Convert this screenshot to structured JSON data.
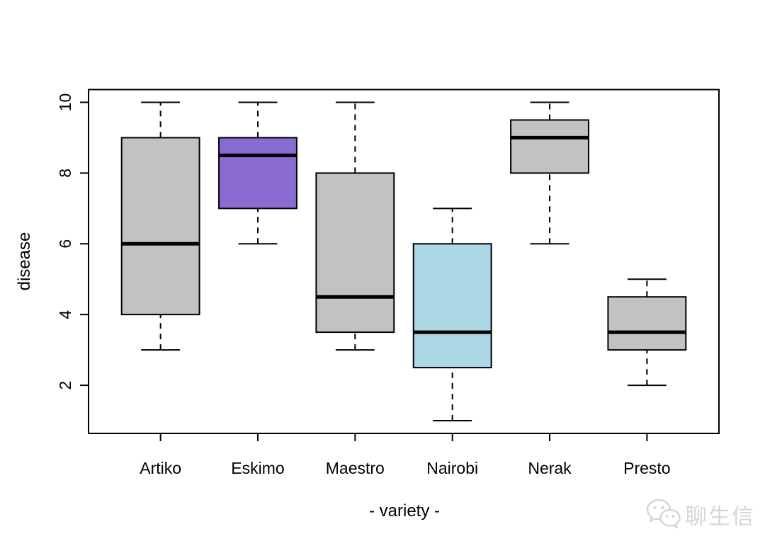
{
  "watermark": {
    "text": "聊生信",
    "icon": "wechat-icon",
    "color": "#d6d6d6"
  },
  "chart_data": {
    "type": "boxplot",
    "title": "",
    "xlabel": "- variety -",
    "ylabel": "disease",
    "categories": [
      "Artiko",
      "Eskimo",
      "Maestro",
      "Nairobi",
      "Nerak",
      "Presto"
    ],
    "series": [
      {
        "name": "Artiko",
        "min": 3,
        "q1": 4,
        "median": 6,
        "q3": 9,
        "max": 10,
        "color": "#C2C2C2"
      },
      {
        "name": "Eskimo",
        "min": 6,
        "q1": 7,
        "median": 8.5,
        "q3": 9,
        "max": 10,
        "color": "#8A6BD1"
      },
      {
        "name": "Maestro",
        "min": 3,
        "q1": 3.5,
        "median": 4.5,
        "q3": 8,
        "max": 10,
        "color": "#C2C2C2"
      },
      {
        "name": "Nairobi",
        "min": 1,
        "q1": 2.5,
        "median": 3.5,
        "q3": 6,
        "max": 7,
        "color": "#ADD8E6"
      },
      {
        "name": "Nerak",
        "min": 6,
        "q1": 8,
        "median": 9,
        "q3": 9.5,
        "max": 10,
        "color": "#C2C2C2"
      },
      {
        "name": "Presto",
        "min": 2,
        "q1": 3,
        "median": 3.5,
        "q3": 4.5,
        "max": 5,
        "color": "#C2C2C2"
      }
    ],
    "yticks": [
      2,
      4,
      6,
      8,
      10
    ],
    "ylim": [
      0.64,
      10.36
    ],
    "grid": false,
    "legend": null,
    "whisker_style": "dashed",
    "axis_color": "#000000"
  }
}
